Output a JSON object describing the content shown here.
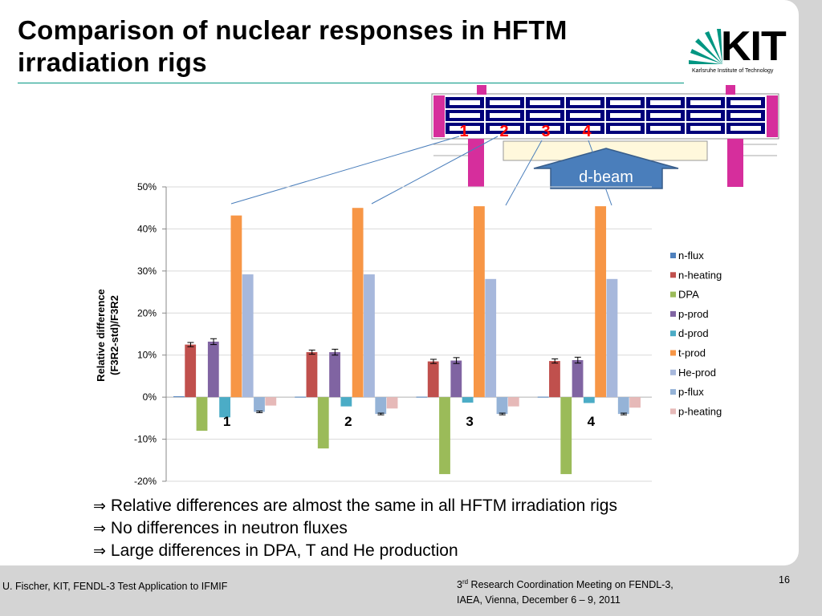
{
  "slide": {
    "title": "Comparison of nuclear responses in HFTM\nirradiation rigs",
    "logo": {
      "text": "KIT",
      "subtitle": "Karlsruhe Institute of Technology"
    },
    "rig_diagram": {
      "rig_labels": [
        "1",
        "2",
        "3",
        "4"
      ],
      "beam_label": "d-beam"
    },
    "bullets": [
      "Relative differences are almost the same in all HFTM irradiation rigs",
      "No differences in neutron fluxes",
      "Large differences in DPA, T and He production"
    ],
    "bullet_icon": "implies-arrow-icon",
    "footer": {
      "left": "U. Fischer, KIT, FENDL-3 Test Application to IFMIF",
      "mid_ordinal": "3",
      "mid_ordinal_suffix": "rd",
      "mid_line1_rest": " Research Coordination Meeting on FENDL-3,",
      "mid_line2": "IAEA, Vienna, December 6 – 9, 2011",
      "page": "16"
    }
  },
  "colors": {
    "n-flux": "#4f81bd",
    "n-heating": "#c0504d",
    "DPA": "#9bbb59",
    "p-prod": "#8064a2",
    "d-prod": "#4bacc6",
    "t-prod": "#f79646",
    "He-prod": "#a7b8dc",
    "p-flux": "#95b3d7",
    "p-heating": "#e6b9b8",
    "title-rule": "#009682",
    "rig-red": "#ff0000",
    "beam": "#4a7ebb"
  },
  "chart_data": {
    "type": "bar",
    "ylabel": "Relative difference\n(F3R2-std)/F3R2",
    "ylim": [
      -0.2,
      0.5
    ],
    "yticks": [
      -0.2,
      -0.1,
      0,
      0.1,
      0.2,
      0.3,
      0.4,
      0.5
    ],
    "ytick_labels": [
      "-20%",
      "-10%",
      "0%",
      "10%",
      "20%",
      "30%",
      "40%",
      "50%"
    ],
    "categories": [
      "1",
      "2",
      "3",
      "4"
    ],
    "legend_position": "right",
    "series": [
      {
        "name": "n-flux",
        "values": [
          0.002,
          0.001,
          0.001,
          0.001
        ]
      },
      {
        "name": "n-heating",
        "values": [
          0.125,
          0.107,
          0.085,
          0.086
        ]
      },
      {
        "name": "DPA",
        "values": [
          -0.08,
          -0.122,
          -0.183,
          -0.183
        ]
      },
      {
        "name": "p-prod",
        "values": [
          0.132,
          0.107,
          0.087,
          0.088
        ]
      },
      {
        "name": "d-prod",
        "values": [
          -0.048,
          -0.022,
          -0.013,
          -0.014
        ]
      },
      {
        "name": "t-prod",
        "values": [
          0.432,
          0.45,
          0.454,
          0.454
        ]
      },
      {
        "name": "He-prod",
        "values": [
          0.292,
          0.292,
          0.281,
          0.281
        ]
      },
      {
        "name": "p-flux",
        "values": [
          -0.035,
          -0.04,
          -0.04,
          -0.04
        ]
      },
      {
        "name": "p-heating",
        "values": [
          -0.02,
          -0.027,
          -0.022,
          -0.025
        ]
      }
    ],
    "error_bars": {
      "n-heating": 0.005,
      "p-prod": 0.007,
      "p-flux": 0.002
    }
  }
}
